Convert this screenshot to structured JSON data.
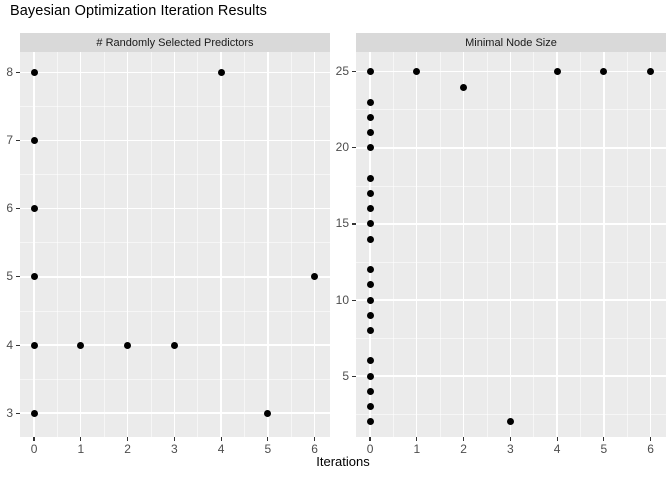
{
  "title": "Bayesian Optimization Iteration Results",
  "xlabel": "Iterations",
  "colors": {
    "panel_bg": "#EBEBEB",
    "strip_bg": "#D9D9D9",
    "grid": "#FFFFFF",
    "point": "#000000",
    "tick_mark": "#333333",
    "tick_label": "#4D4D4D",
    "strip_text": "#1A1A1A",
    "title_text": "#000000"
  },
  "chart_data": [
    {
      "type": "scatter",
      "facet_label": "# Randomly Selected Predictors",
      "xlabel": "Iterations",
      "ylabel": "",
      "x_ticks": [
        0,
        1,
        2,
        3,
        4,
        5,
        6
      ],
      "y_ticks": [
        3,
        4,
        5,
        6,
        7,
        8
      ],
      "xlim": [
        -0.3,
        6.33
      ],
      "ylim": [
        2.65,
        8.3
      ],
      "grid": true,
      "legend": "none",
      "points": [
        [
          0,
          3
        ],
        [
          0,
          4
        ],
        [
          0,
          5
        ],
        [
          0,
          6
        ],
        [
          0,
          7
        ],
        [
          0,
          8
        ],
        [
          1,
          4
        ],
        [
          2,
          4
        ],
        [
          3,
          4
        ],
        [
          4,
          8
        ],
        [
          5,
          3
        ],
        [
          6,
          5
        ]
      ]
    },
    {
      "type": "scatter",
      "facet_label": "Minimal Node Size",
      "xlabel": "Iterations",
      "ylabel": "",
      "x_ticks": [
        0,
        1,
        2,
        3,
        4,
        5,
        6
      ],
      "y_ticks": [
        5,
        10,
        15,
        20,
        25
      ],
      "xlim": [
        -0.3,
        6.33
      ],
      "ylim": [
        1.0,
        26.3
      ],
      "grid": true,
      "legend": "none",
      "points": [
        [
          0,
          2
        ],
        [
          0,
          3
        ],
        [
          0,
          4
        ],
        [
          0,
          5
        ],
        [
          0,
          6
        ],
        [
          0,
          8
        ],
        [
          0,
          9
        ],
        [
          0,
          10
        ],
        [
          0,
          11
        ],
        [
          0,
          12
        ],
        [
          0,
          14
        ],
        [
          0,
          15
        ],
        [
          0,
          16
        ],
        [
          0,
          17
        ],
        [
          0,
          18
        ],
        [
          0,
          20
        ],
        [
          0,
          21
        ],
        [
          0,
          22
        ],
        [
          0,
          23
        ],
        [
          0,
          25
        ],
        [
          1,
          25
        ],
        [
          2,
          24
        ],
        [
          3,
          2
        ],
        [
          4,
          25
        ],
        [
          5,
          25
        ],
        [
          6,
          25
        ]
      ]
    }
  ]
}
